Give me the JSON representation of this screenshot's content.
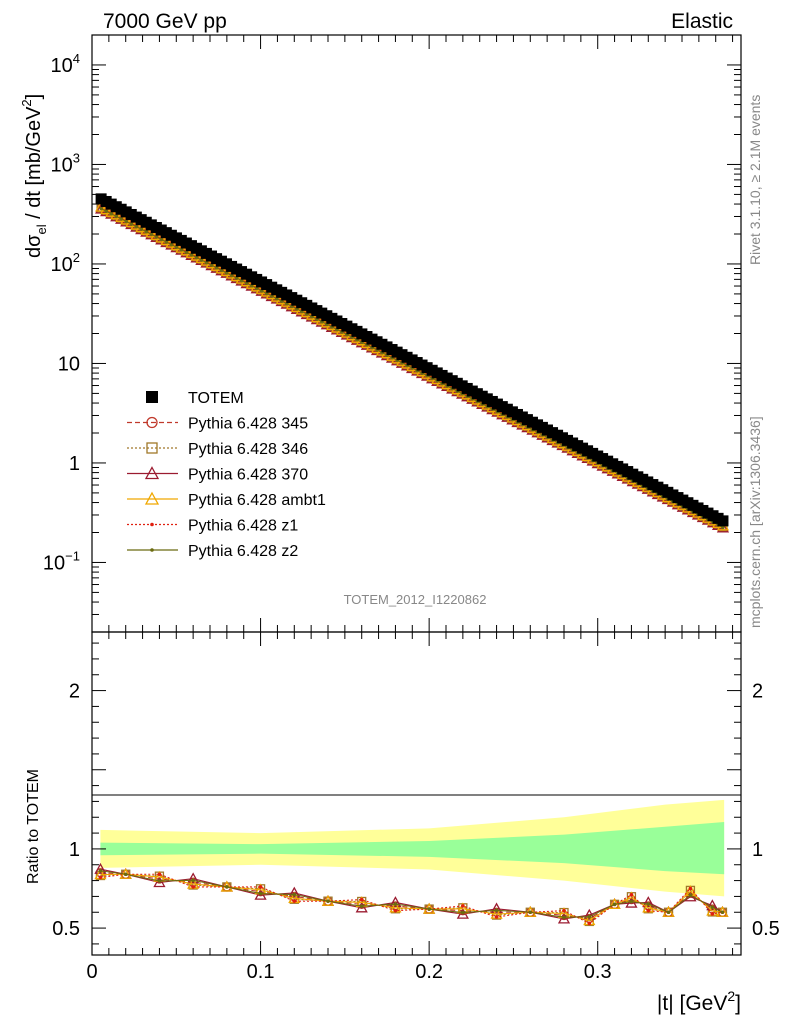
{
  "header": {
    "left": "7000 GeV pp",
    "right": "Elastic"
  },
  "side_labels": {
    "rivet": "Rivet 3.1.10, ≥ 2.1M events",
    "source": "mcplots.cern.ch [arXiv:1306.3436]"
  },
  "analysis_id": "TOTEM_2012_I1220862",
  "colors": {
    "band_inner": "#99ff99",
    "band_outer": "#ffff99"
  },
  "chart_data": [
    {
      "type": "scatter",
      "panel": "main",
      "ylabel_main": "dσ",
      "ylabel_sub": "el",
      "ylabel_rest": " / dt [mb/GeV",
      "ylabel_sup": "2",
      "ylabel_close": "]",
      "yscale": "log",
      "ylim": [
        0.02,
        20000
      ],
      "xlim": [
        0,
        0.385
      ],
      "y_tick_labels": [
        {
          "value": 10000,
          "base": "10",
          "exp": "4"
        },
        {
          "value": 1000,
          "base": "10",
          "exp": "3"
        },
        {
          "value": 100,
          "base": "10",
          "exp": "2"
        },
        {
          "value": 10,
          "base": "10",
          "exp": ""
        },
        {
          "value": 1,
          "base": "1",
          "exp": ""
        },
        {
          "value": 0.1,
          "base": "10",
          "exp": "−1"
        }
      ],
      "legend": [
        {
          "label": "TOTEM",
          "color": "#000000",
          "marker": "square-filled",
          "line": "none"
        },
        {
          "label": "Pythia 6.428 345",
          "color": "#c0392b",
          "marker": "circle-open",
          "line": "dashed"
        },
        {
          "label": "Pythia 6.428 346",
          "color": "#a0782a",
          "marker": "square-open",
          "line": "dotted"
        },
        {
          "label": "Pythia 6.428 370",
          "color": "#9b1b30",
          "marker": "triangle-open",
          "line": "solid"
        },
        {
          "label": "Pythia 6.428 ambt1",
          "color": "#f0a800",
          "marker": "triangle-open",
          "line": "solid"
        },
        {
          "label": "Pythia 6.428 z1",
          "color": "#e02010",
          "marker": "dot",
          "line": "dotted"
        },
        {
          "label": "Pythia 6.428 z2",
          "color": "#6b6b10",
          "marker": "dot",
          "line": "solid"
        }
      ],
      "totem_x": [
        0.00541,
        0.0084,
        0.0114,
        0.0144,
        0.0173,
        0.0203,
        0.0233,
        0.0263,
        0.0292,
        0.0322,
        0.0352,
        0.0382,
        0.0411,
        0.0441,
        0.0471,
        0.0501,
        0.053,
        0.056,
        0.059,
        0.062,
        0.0649,
        0.0679,
        0.0709,
        0.0739,
        0.0768,
        0.0798,
        0.0828,
        0.0858,
        0.0887,
        0.0917,
        0.0947,
        0.0977,
        0.1006,
        0.1036,
        0.1066,
        0.1096,
        0.1125,
        0.1155,
        0.1185,
        0.1215,
        0.1244,
        0.1274,
        0.1304,
        0.1334,
        0.1363,
        0.1393,
        0.1423,
        0.1453,
        0.1482,
        0.1512,
        0.1542,
        0.1572,
        0.1601,
        0.1631,
        0.1661,
        0.1691,
        0.172,
        0.175,
        0.178,
        0.181,
        0.1839,
        0.1869,
        0.1899,
        0.1929,
        0.1958,
        0.1988,
        0.2018,
        0.2048,
        0.2077,
        0.2107,
        0.2137,
        0.2167,
        0.2196,
        0.2226,
        0.2256,
        0.2286,
        0.2315,
        0.2345,
        0.2375,
        0.2405,
        0.2434,
        0.2464,
        0.2494,
        0.2524,
        0.2553,
        0.2583,
        0.2613,
        0.2643,
        0.2672,
        0.2702,
        0.2732,
        0.2762,
        0.2791,
        0.2821,
        0.2851,
        0.2881,
        0.291,
        0.294,
        0.297,
        0.3,
        0.3029,
        0.3059,
        0.3089,
        0.3119,
        0.3148,
        0.3178,
        0.3208,
        0.3238,
        0.3267,
        0.3297,
        0.3327,
        0.3357,
        0.3386,
        0.3416,
        0.3446,
        0.3476,
        0.3505,
        0.3535,
        0.3565,
        0.3595,
        0.3624,
        0.3654,
        0.3684,
        0.3714,
        0.3743
      ],
      "totem_slope": -20.2,
      "totem_intercept": 503,
      "mc_slope": -20.0,
      "mc_intercept": 412
    },
    {
      "type": "line",
      "panel": "ratio",
      "ylabel": "Ratio to TOTEM",
      "xlabel": "|t| [GeV",
      "xlabel_sup": "2",
      "xlabel_close": "]",
      "ylim": [
        0.33,
        2.37
      ],
      "xlim": [
        0,
        0.385
      ],
      "x_tick_labels": [
        "0",
        "0.1",
        "0.2",
        "0.3"
      ],
      "y_tick_labels": [
        "0.5",
        "1",
        "2"
      ],
      "band_inner": [
        [
          0.005,
          0.96,
          1.04
        ],
        [
          0.1,
          0.97,
          1.03
        ],
        [
          0.2,
          0.95,
          1.05
        ],
        [
          0.28,
          0.91,
          1.09
        ],
        [
          0.34,
          0.86,
          1.14
        ],
        [
          0.375,
          0.84,
          1.17
        ]
      ],
      "band_outer": [
        [
          0.005,
          0.88,
          1.12
        ],
        [
          0.1,
          0.9,
          1.1
        ],
        [
          0.2,
          0.87,
          1.13
        ],
        [
          0.28,
          0.8,
          1.2
        ],
        [
          0.34,
          0.73,
          1.28
        ],
        [
          0.375,
          0.7,
          1.31
        ]
      ],
      "mc_ratio": [
        [
          0.005,
          0.85
        ],
        [
          0.02,
          0.84
        ],
        [
          0.04,
          0.81
        ],
        [
          0.06,
          0.79
        ],
        [
          0.08,
          0.76
        ],
        [
          0.1,
          0.73
        ],
        [
          0.12,
          0.7
        ],
        [
          0.14,
          0.67
        ],
        [
          0.16,
          0.65
        ],
        [
          0.18,
          0.64
        ],
        [
          0.2,
          0.62
        ],
        [
          0.22,
          0.61
        ],
        [
          0.24,
          0.6
        ],
        [
          0.26,
          0.6
        ],
        [
          0.28,
          0.58
        ],
        [
          0.295,
          0.56
        ],
        [
          0.31,
          0.65
        ],
        [
          0.32,
          0.68
        ],
        [
          0.33,
          0.64
        ],
        [
          0.342,
          0.6
        ],
        [
          0.355,
          0.72
        ],
        [
          0.368,
          0.62
        ],
        [
          0.374,
          0.6
        ]
      ]
    }
  ]
}
